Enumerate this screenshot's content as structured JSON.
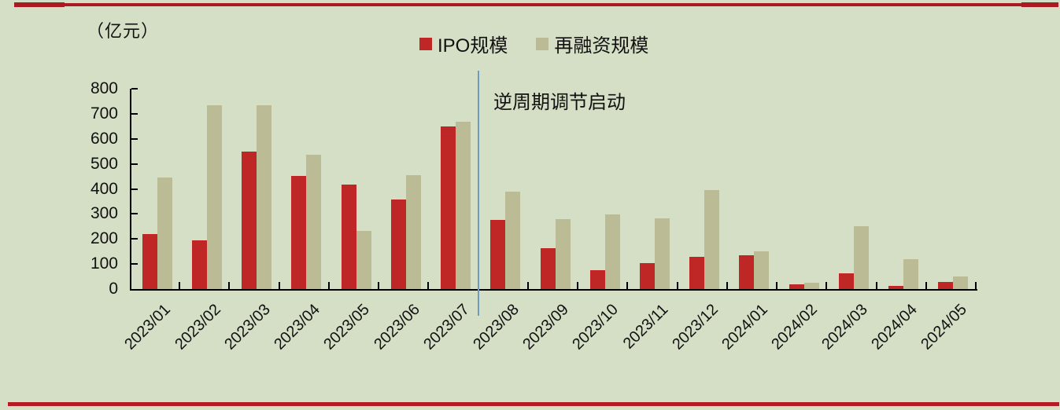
{
  "page": {
    "unit_label": "（亿元）"
  },
  "legend": {
    "items": [
      {
        "label": "IPO规模",
        "color": "#BE2726"
      },
      {
        "label": "再融资规模",
        "color": "#BBBC95"
      }
    ]
  },
  "annotation": {
    "text": "逆周期调节启动"
  },
  "colors": {
    "background": "#D5DFC6",
    "ipo_bar": "#BE2726",
    "refinance_bar": "#BBBC95",
    "divider_line": "#6F9CBD",
    "rule_red_top": "#A91B21",
    "rule_red_bottom": "#B41B24",
    "axis": "#000000"
  },
  "chart_data": {
    "type": "bar",
    "title": "",
    "ylabel": "（亿元）",
    "xlabel": "",
    "ylim": [
      0,
      800
    ],
    "yticks": [
      0,
      100,
      200,
      300,
      400,
      500,
      600,
      700,
      800
    ],
    "grid": false,
    "legend_position": "top-center",
    "categories": [
      "2023/01",
      "2023/02",
      "2023/03",
      "2023/04",
      "2023/05",
      "2023/06",
      "2023/07",
      "2023/08",
      "2023/09",
      "2023/10",
      "2023/11",
      "2023/12",
      "2024/01",
      "2024/02",
      "2024/03",
      "2024/04",
      "2024/05"
    ],
    "series": [
      {
        "name": "IPO规模",
        "color": "#BE2726",
        "values": [
          220,
          193,
          550,
          453,
          417,
          358,
          650,
          277,
          163,
          76,
          103,
          128,
          135,
          20,
          64,
          12,
          28
        ]
      },
      {
        "name": "再融资规模",
        "color": "#BBBC95",
        "values": [
          445,
          733,
          733,
          538,
          232,
          455,
          668,
          390,
          278,
          298,
          282,
          394,
          152,
          25,
          250,
          120,
          49
        ]
      }
    ],
    "annotation": {
      "text": "逆周期调节启动",
      "position": "vertical line between 2023/07 and 2023/08"
    }
  }
}
